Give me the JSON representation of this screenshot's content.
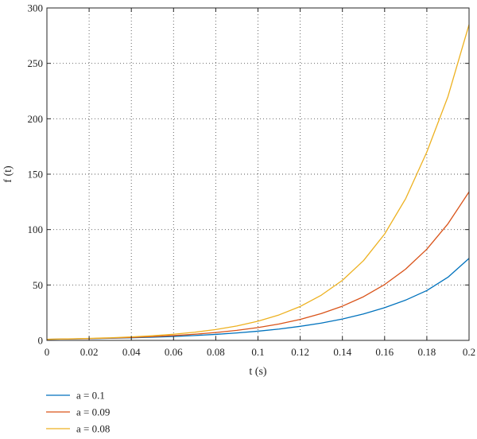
{
  "chart_data": {
    "type": "line",
    "xlabel": "t (s)",
    "ylabel": "f (t)",
    "xlim": [
      0,
      0.2
    ],
    "ylim": [
      0,
      300
    ],
    "grid": true,
    "grid_style": "dotted",
    "legend_position": "bottom-left",
    "x_ticks": [
      0,
      0.02,
      0.04,
      0.06,
      0.08,
      0.1,
      0.12,
      0.14,
      0.16,
      0.18,
      0.2
    ],
    "x_tick_labels": [
      "0",
      "0.02",
      "0.04",
      "0.06",
      "0.08",
      "0.1",
      "0.12",
      "0.14",
      "0.16",
      "0.18",
      "0.2"
    ],
    "y_ticks": [
      0,
      50,
      100,
      150,
      200,
      250,
      300
    ],
    "y_tick_labels": [
      "0",
      "50",
      "100",
      "150",
      "200",
      "250",
      "300"
    ],
    "x": [
      0,
      0.01,
      0.02,
      0.03,
      0.04,
      0.05,
      0.06,
      0.07,
      0.08,
      0.09,
      0.1,
      0.11,
      0.12,
      0.13,
      0.14,
      0.15,
      0.16,
      0.17,
      0.18,
      0.19,
      0.2
    ],
    "series": [
      {
        "name": "a = 0.1",
        "color": "#0072bd",
        "values": [
          1.0,
          1.24,
          1.53,
          1.89,
          2.33,
          2.88,
          3.56,
          4.4,
          5.43,
          6.71,
          8.3,
          10.25,
          12.7,
          15.6,
          19.3,
          23.9,
          29.5,
          36.4,
          45.0,
          57.0,
          74.0
        ]
      },
      {
        "name": "a = 0.09",
        "color": "#d95319",
        "values": [
          1.0,
          1.28,
          1.63,
          2.08,
          2.66,
          3.4,
          4.34,
          5.55,
          7.09,
          9.06,
          11.6,
          14.8,
          18.9,
          24.2,
          30.9,
          39.4,
          50.4,
          64.4,
          82.3,
          105.2,
          134.0
        ]
      },
      {
        "name": "a = 0.08",
        "color": "#edb120",
        "values": [
          1.0,
          1.33,
          1.77,
          2.35,
          3.13,
          4.16,
          5.53,
          7.36,
          9.8,
          13.0,
          17.3,
          23.0,
          30.6,
          40.8,
          54.2,
          72.0,
          96.0,
          128.0,
          170.0,
          220.0,
          285.0
        ]
      }
    ]
  }
}
